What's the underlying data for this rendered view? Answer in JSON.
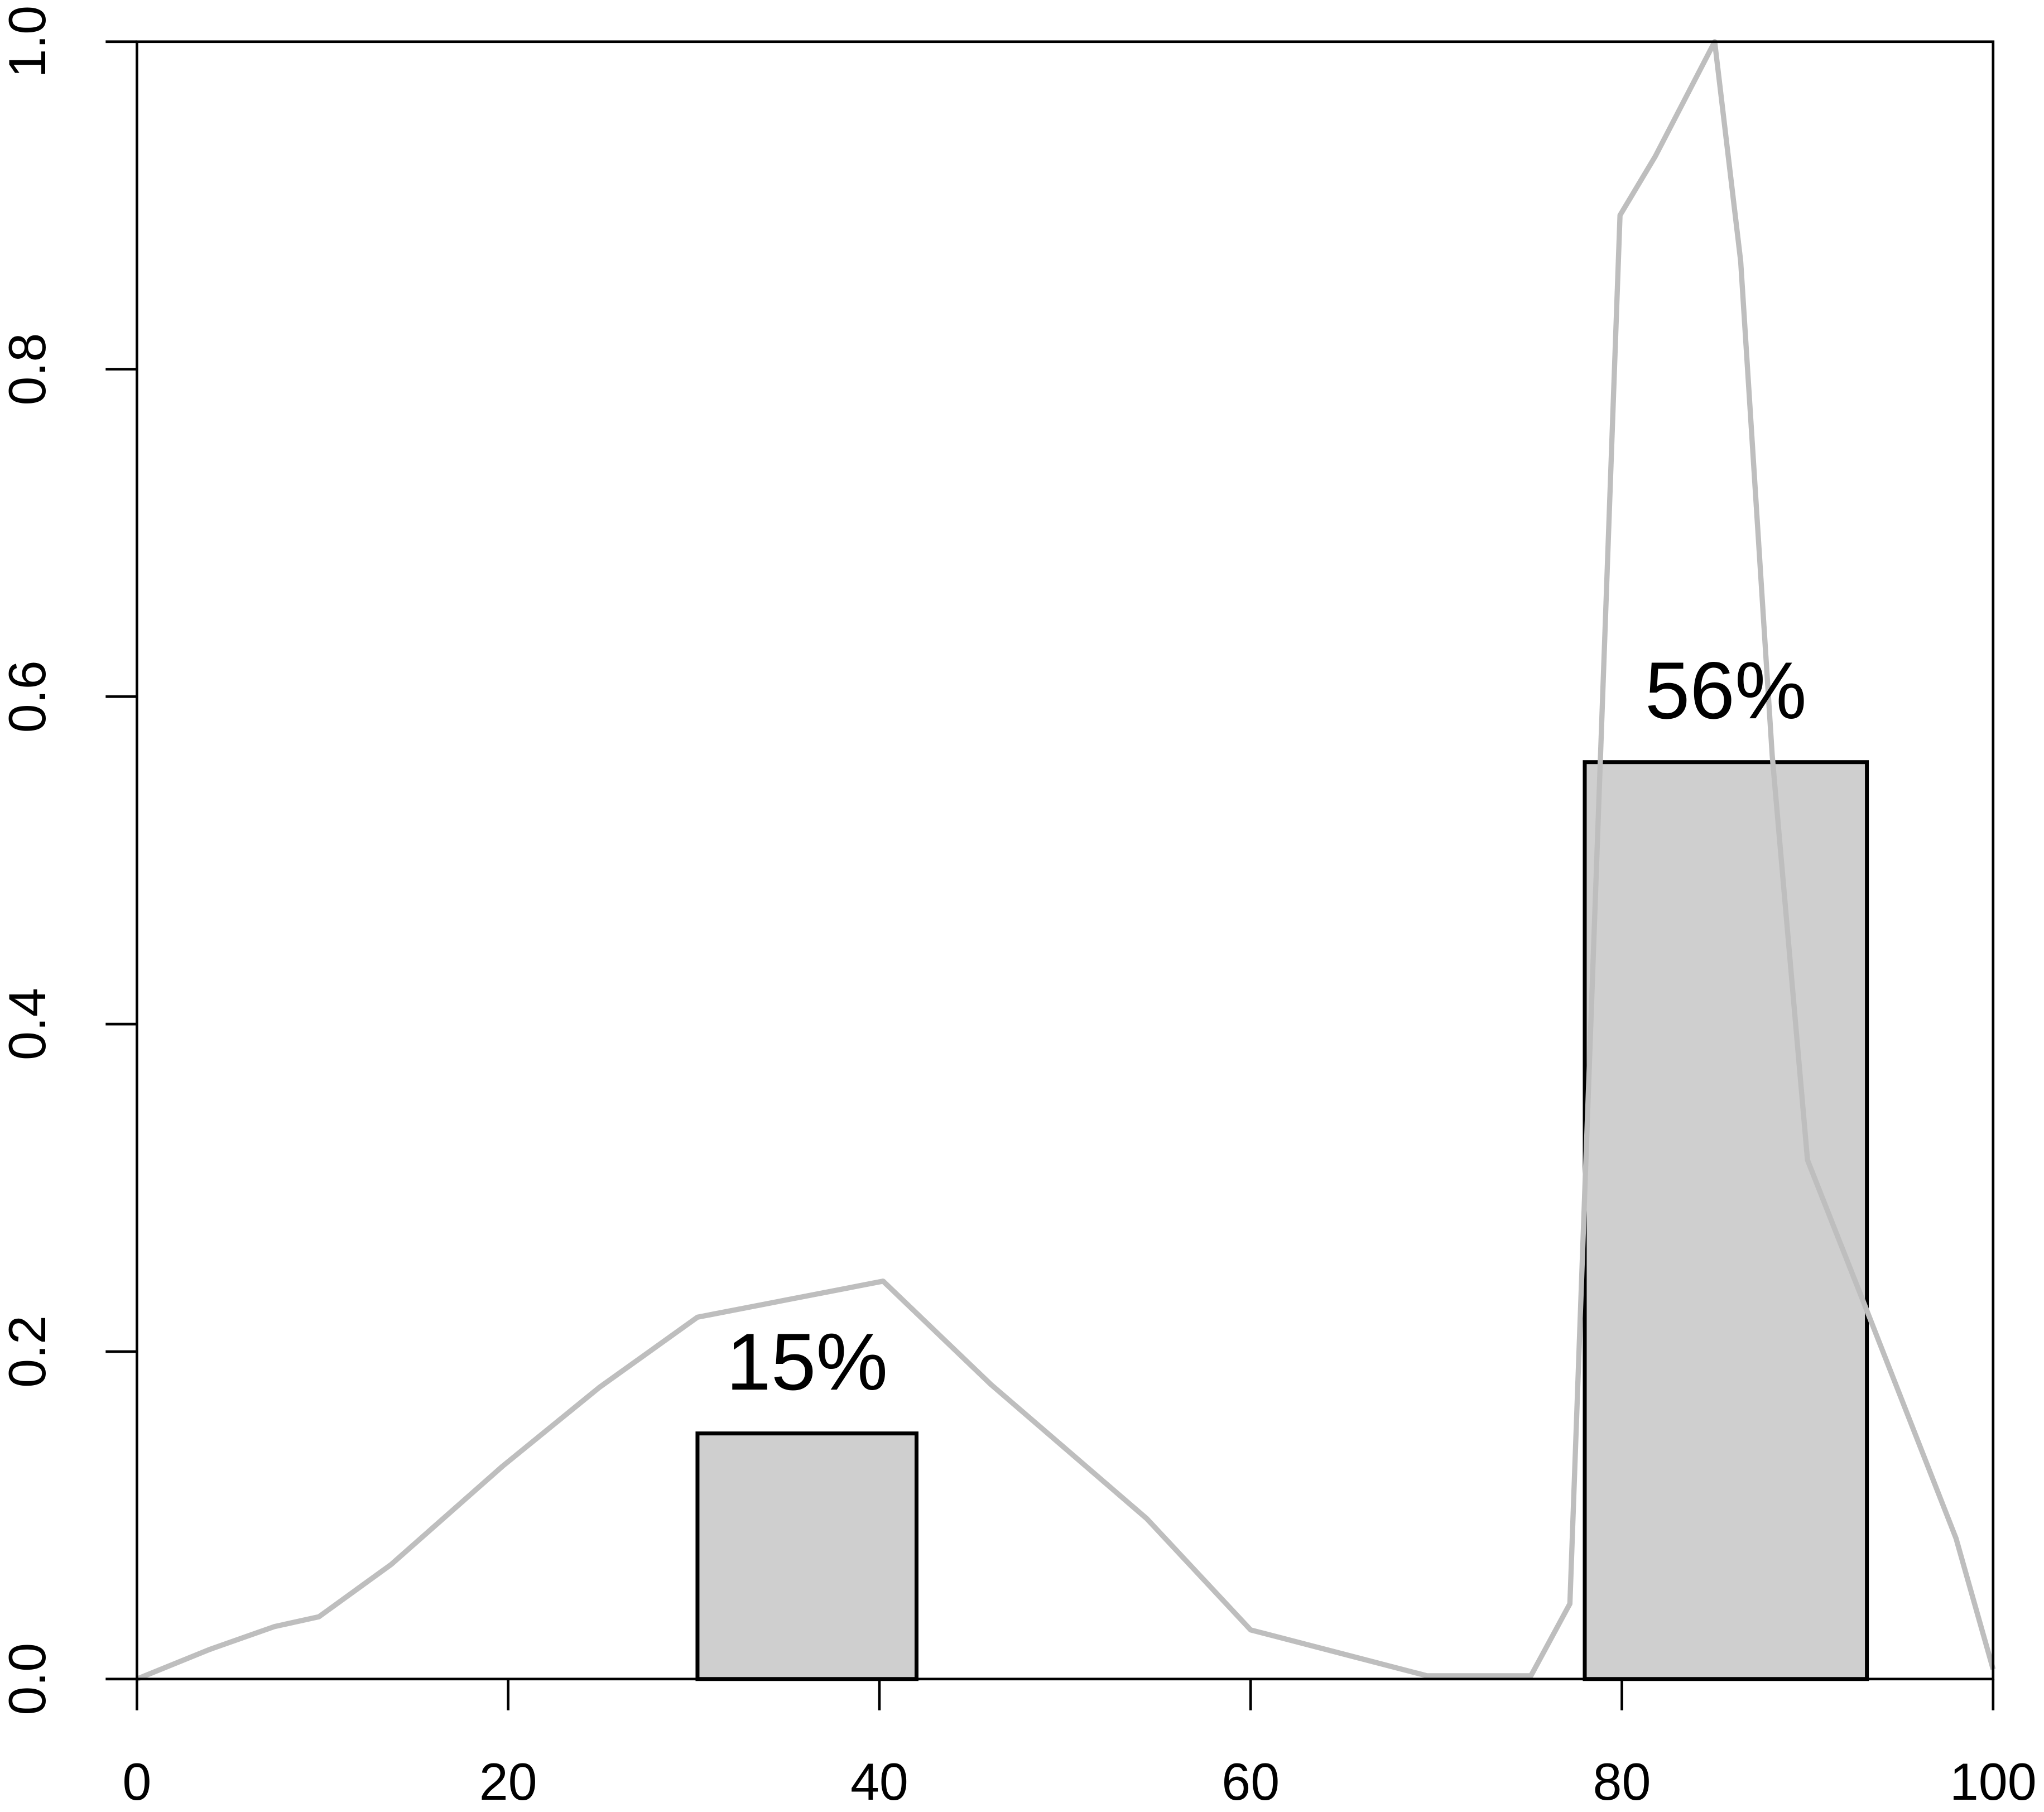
{
  "chart_data": {
    "type": "bar",
    "x_start": [
      30.2,
      78
    ],
    "x_end": [
      42,
      93.2
    ],
    "values": [
      0.15,
      0.56
    ],
    "value_labels": [
      "15%",
      "56%"
    ],
    "color": "#cfcfcf",
    "line": {
      "x": [
        0,
        3.9,
        7.4,
        9.8,
        13.7,
        19.7,
        24.9,
        30.2,
        40.2,
        46,
        54.4,
        60,
        69.5,
        75.1,
        77.2,
        79.9,
        81.8,
        85,
        86.4,
        88.1,
        90,
        93.2,
        98,
        100
      ],
      "values": [
        0,
        0.018,
        0.032,
        0.038,
        0.07,
        0.13,
        0.178,
        0.221,
        0.243,
        0.18,
        0.098,
        0.03,
        0.002,
        0.002,
        0.046,
        0.894,
        0.93,
        1.0,
        0.866,
        0.564,
        0.317,
        0.225,
        0.086,
        0.006
      ],
      "color": "#bebebe"
    },
    "xlim": [
      0,
      100
    ],
    "ylim": [
      0,
      1
    ],
    "xticks": [
      0,
      20,
      40,
      60,
      80,
      100
    ],
    "yticks": [
      {
        "value": 0,
        "label": "0.0"
      },
      0.2,
      0.4,
      0.6,
      0.8,
      {
        "value": 1,
        "label": "1.0"
      }
    ]
  }
}
